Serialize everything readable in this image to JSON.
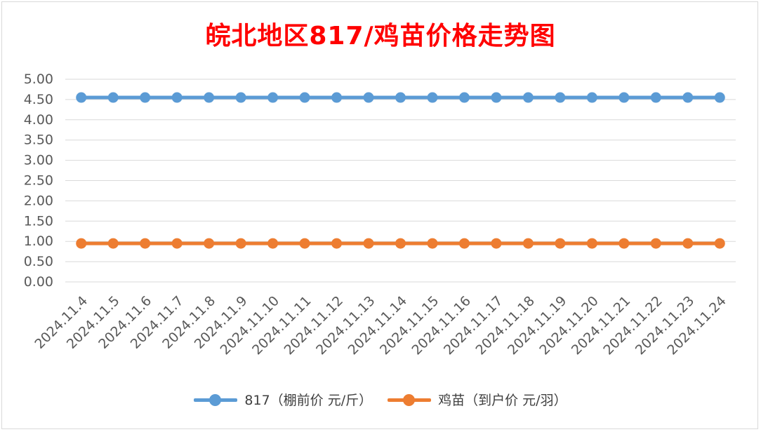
{
  "chart_data": {
    "type": "line",
    "title": "皖北地区817/鸡苗价格走势图",
    "categories": [
      "2024.11.4",
      "2024.11.5",
      "2024.11.6",
      "2024.11.7",
      "2024.11.8",
      "2024.11.9",
      "2024.11.10",
      "2024.11.11",
      "2024.11.12",
      "2024.11.13",
      "2024.11.14",
      "2024.11.15",
      "2024.11.16",
      "2024.11.17",
      "2024.11.18",
      "2024.11.19",
      "2024.11.20",
      "2024.11.21",
      "2024.11.22",
      "2024.11.23",
      "2024.11.24"
    ],
    "y_ticks": [
      "0.00",
      "0.50",
      "1.00",
      "1.50",
      "2.00",
      "2.50",
      "3.00",
      "3.50",
      "4.00",
      "4.50",
      "5.00"
    ],
    "ylim": [
      0,
      5
    ],
    "grid": true,
    "legend_position": "bottom",
    "series": [
      {
        "name": "817（棚前价 元/斤）",
        "color": "#5b9bd5",
        "values": [
          4.55,
          4.55,
          4.55,
          4.55,
          4.55,
          4.55,
          4.55,
          4.55,
          4.55,
          4.55,
          4.55,
          4.55,
          4.55,
          4.55,
          4.55,
          4.55,
          4.55,
          4.55,
          4.55,
          4.55,
          4.55
        ]
      },
      {
        "name": "鸡苗（到户价 元/羽）",
        "color": "#ed7d31",
        "values": [
          0.95,
          0.95,
          0.95,
          0.95,
          0.95,
          0.95,
          0.95,
          0.95,
          0.95,
          0.95,
          0.95,
          0.95,
          0.95,
          0.95,
          0.95,
          0.95,
          0.95,
          0.95,
          0.95,
          0.95,
          0.95
        ]
      }
    ]
  }
}
